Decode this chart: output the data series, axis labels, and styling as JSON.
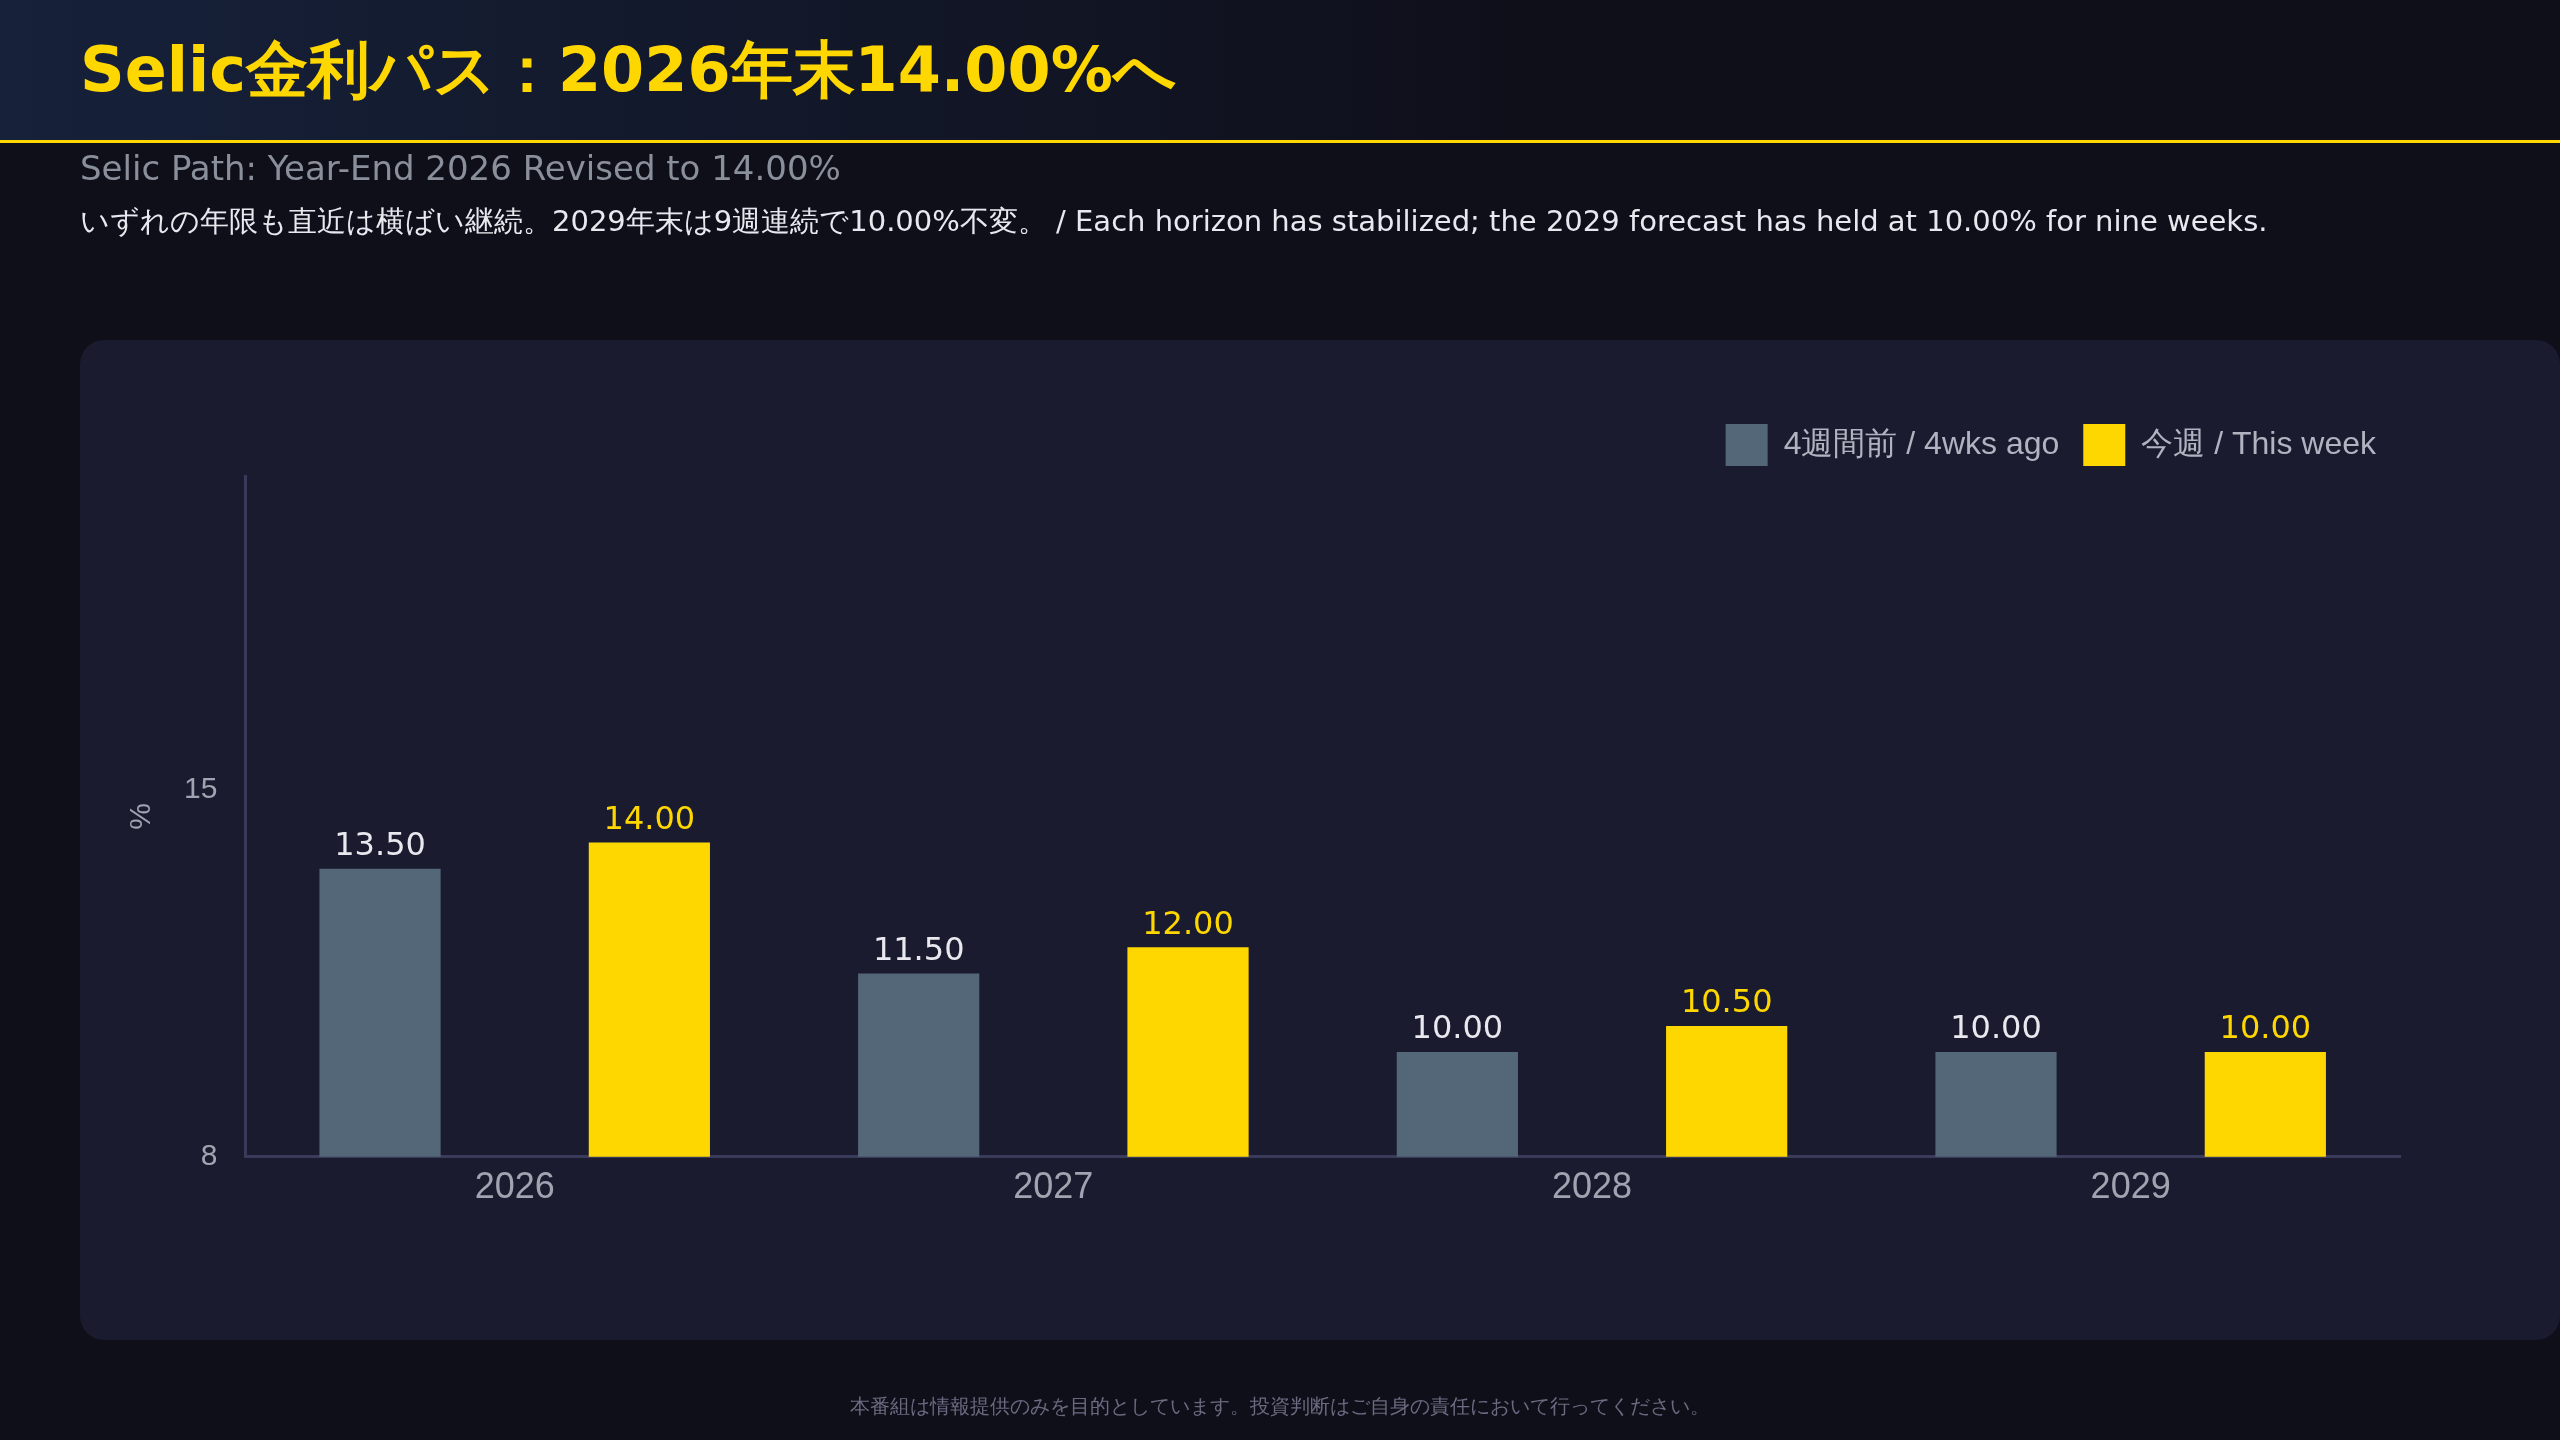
{
  "chart_data": {
    "type": "bar",
    "title": "Selic金利パス：2026年末14.00%へ",
    "subtitle": "Selic Path: Year-End 2026 Revised to 14.00%",
    "ylabel": "%",
    "annotations": [
      "いずれの年限も直近は横ばい継続。2029年末は9週連続で10.00%不変。 / Each horizon has stabilized; the 2029 forecast has held at 10.00% for nine weeks.",
      "本番組は情報提供のみを目的としています。投資判断はご自身の責任において行ってください。"
    ],
    "categories": [
      "2026",
      "2027",
      "2028",
      "2029"
    ],
    "series": [
      {
        "name": "4週間前 / 4wks ago",
        "color": "#546778",
        "values": [
          13.5,
          11.5,
          10,
          10
        ],
        "value_labels": [
          "13.50",
          "11.50",
          "10.00",
          "10.00"
        ]
      },
      {
        "name": "今週 / This week",
        "color": "#ffd700",
        "values": [
          14,
          12,
          10.5,
          10
        ],
        "value_labels": [
          "14.00",
          "12.00",
          "10.50",
          "10.00"
        ]
      }
    ],
    "ylim": [
      8,
      21
    ],
    "yticks": [
      8,
      15
    ],
    "grid": false,
    "legend": "top right"
  }
}
